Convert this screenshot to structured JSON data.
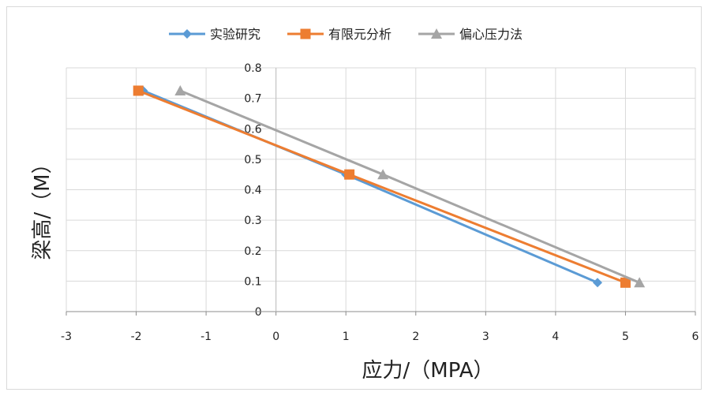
{
  "chart_data": {
    "type": "line",
    "title": "",
    "xlabel": "应力/（MPA）",
    "ylabel": "梁高/（M）",
    "xlim": [
      -3,
      6
    ],
    "ylim": [
      0,
      0.8
    ],
    "x_ticks": [
      "-3",
      "-2",
      "-1",
      "0",
      "1",
      "2",
      "3",
      "4",
      "5",
      "6"
    ],
    "y_ticks": [
      "0",
      "0.1",
      "0.2",
      "0.3",
      "0.4",
      "0.5",
      "0.6",
      "0.7",
      "0.8"
    ],
    "grid": true,
    "legend_position": "top",
    "series": [
      {
        "name": "实验研究",
        "color": "#5b9bd5",
        "marker": "diamond",
        "points": [
          [
            -1.9,
            0.725
          ],
          [
            1.0,
            0.45
          ],
          [
            4.6,
            0.095
          ]
        ]
      },
      {
        "name": "有限元分析",
        "color": "#ed7d31",
        "marker": "square",
        "points": [
          [
            -1.97,
            0.725
          ],
          [
            1.05,
            0.45
          ],
          [
            5.0,
            0.095
          ]
        ]
      },
      {
        "name": "偏心压力法",
        "color": "#a5a5a5",
        "marker": "triangle",
        "points": [
          [
            -1.37,
            0.725
          ],
          [
            1.53,
            0.45
          ],
          [
            5.2,
            0.095
          ]
        ]
      }
    ]
  }
}
